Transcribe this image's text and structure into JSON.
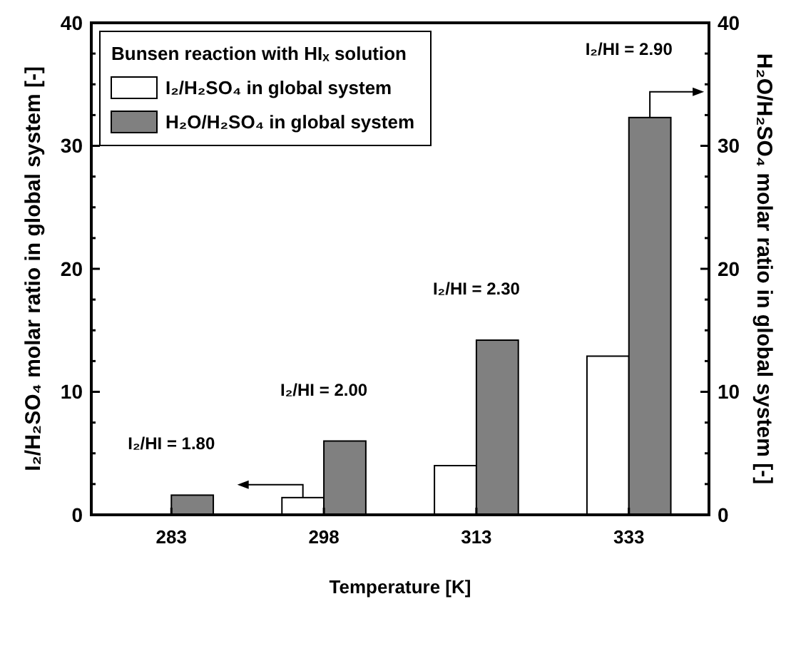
{
  "chart_data": {
    "type": "bar",
    "xlabel": "Temperature [K]",
    "ylabel": "I₂/H₂SO₄ molar ratio in global system [-]",
    "y2label": "H₂O/H₂SO₄ molar ratio in global system [-]",
    "legend_title": "Bunsen reaction with HIₓ solution",
    "categories": [
      "283",
      "298",
      "313",
      "333"
    ],
    "series": [
      {
        "name": "I₂/H₂SO₄ in global system",
        "color": "#ffffff",
        "values": [
          null,
          1.4,
          4.0,
          12.9
        ]
      },
      {
        "name": "H₂O/H₂SO₄ in global system",
        "color": "#808080",
        "values": [
          1.6,
          6.0,
          14.2,
          32.3
        ],
        "axis": "y2"
      }
    ],
    "ylim": [
      0,
      40
    ],
    "yticks": [
      0,
      {
        "value": 2.5,
        "label": null
      },
      {
        "value": 5,
        "label": null
      },
      {
        "value": 7.5,
        "label": null
      },
      10,
      {
        "value": 12.5,
        "label": null
      },
      {
        "value": 15,
        "label": null
      },
      {
        "value": 17.5,
        "label": null
      },
      20,
      {
        "value": 22.5,
        "label": null
      },
      {
        "value": 25,
        "label": null
      },
      {
        "value": 27.5,
        "label": null
      },
      30,
      {
        "value": 32.5,
        "label": null
      },
      {
        "value": 35,
        "label": null
      },
      {
        "value": 37.5,
        "label": null
      },
      40
    ],
    "y2lim": [
      0,
      40
    ],
    "y2ticks": [
      0,
      {
        "value": 2.5,
        "label": null
      },
      {
        "value": 5,
        "label": null
      },
      {
        "value": 7.5,
        "label": null
      },
      10,
      {
        "value": 12.5,
        "label": null
      },
      {
        "value": 15,
        "label": null
      },
      {
        "value": 17.5,
        "label": null
      },
      20,
      {
        "value": 22.5,
        "label": null
      },
      {
        "value": 25,
        "label": null
      },
      {
        "value": 27.5,
        "label": null
      },
      30,
      {
        "value": 32.5,
        "label": null
      },
      {
        "value": 35,
        "label": null
      },
      {
        "value": 37.5,
        "label": null
      },
      40
    ],
    "annotations": [
      "I₂/HI = 1.80",
      "I₂/HI = 2.00",
      "I₂/HI = 2.30",
      "I₂/HI = 2.90"
    ],
    "legend": "top left",
    "grid": false
  }
}
